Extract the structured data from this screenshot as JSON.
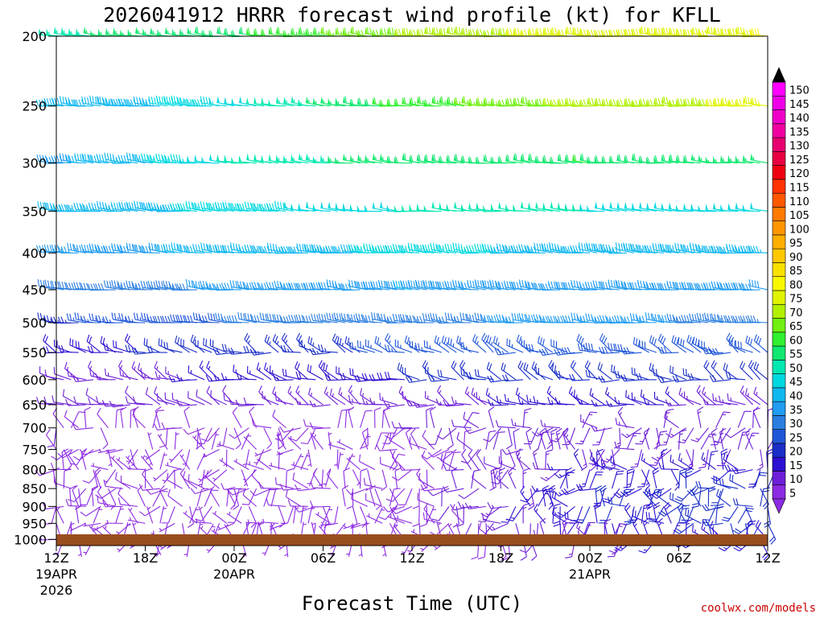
{
  "title": "2026041912 HRRR forecast wind profile (kt) for KFLL",
  "credit": "coolwx.com/models",
  "chart_data": {
    "type": "wind-barb time-height",
    "xlabel": "Forecast Time (UTC)",
    "ylabel": "",
    "y_ticks": [
      200,
      250,
      300,
      350,
      400,
      450,
      500,
      550,
      600,
      650,
      700,
      750,
      800,
      850,
      900,
      950,
      1000
    ],
    "y_scale": "log (pressure, hPa, increasing downward)",
    "ylim": [
      200,
      1020
    ],
    "x_hours": [
      0,
      48
    ],
    "x_ticks": [
      {
        "hour": 0,
        "label": "12Z",
        "date": "19APR",
        "year": "2026"
      },
      {
        "hour": 6,
        "label": "18Z"
      },
      {
        "hour": 12,
        "label": "00Z",
        "date": "20APR"
      },
      {
        "hour": 18,
        "label": "06Z"
      },
      {
        "hour": 24,
        "label": "12Z"
      },
      {
        "hour": 30,
        "label": "18Z"
      },
      {
        "hour": 36,
        "label": "00Z",
        "date": "21APR"
      },
      {
        "hour": 42,
        "label": "06Z"
      },
      {
        "hour": 48,
        "label": "12Z"
      }
    ],
    "ground": {
      "color": "#9a4e1e"
    },
    "colorbar": {
      "levels": [
        5,
        10,
        15,
        20,
        25,
        30,
        35,
        40,
        45,
        50,
        55,
        60,
        65,
        70,
        75,
        80,
        85,
        90,
        95,
        100,
        105,
        110,
        115,
        120,
        125,
        130,
        135,
        140,
        145,
        150
      ],
      "colors": [
        "#8c2be2",
        "#6e1fd8",
        "#2c0fd0",
        "#1a2ec8",
        "#1f56d8",
        "#2a7ee0",
        "#209cf0",
        "#10b8f0",
        "#00d8e0",
        "#00e8b0",
        "#10e870",
        "#30f030",
        "#70f010",
        "#b0f000",
        "#e0f400",
        "#f8f800",
        "#f8e000",
        "#ffc800",
        "#ffae00",
        "#ff9600",
        "#ff7a00",
        "#ff5800",
        "#ff3200",
        "#f00010",
        "#e80040",
        "#e80070",
        "#f000a0",
        "#f000c8",
        "#f000e8",
        "#ff00ff"
      ],
      "over_arrow": "#000000",
      "under_arrow": "#8c2be2"
    },
    "wind_profile": [
      {
        "p": 200,
        "segments": [
          [
            0,
            54
          ],
          [
            12,
            58
          ],
          [
            24,
            70
          ],
          [
            36,
            78
          ],
          [
            48,
            80
          ]
        ]
      },
      {
        "p": 250,
        "segments": [
          [
            0,
            40
          ],
          [
            12,
            48
          ],
          [
            24,
            62
          ],
          [
            36,
            72
          ],
          [
            48,
            76
          ]
        ]
      },
      {
        "p": 300,
        "segments": [
          [
            0,
            38
          ],
          [
            12,
            50
          ],
          [
            24,
            58
          ],
          [
            36,
            60
          ],
          [
            48,
            56
          ]
        ]
      },
      {
        "p": 350,
        "segments": [
          [
            0,
            42
          ],
          [
            12,
            46
          ],
          [
            24,
            50
          ],
          [
            36,
            50
          ],
          [
            48,
            48
          ]
        ]
      },
      {
        "p": 400,
        "segments": [
          [
            0,
            36
          ],
          [
            12,
            42
          ],
          [
            24,
            46
          ],
          [
            36,
            44
          ],
          [
            48,
            44
          ]
        ]
      },
      {
        "p": 450,
        "segments": [
          [
            0,
            30
          ],
          [
            12,
            36
          ],
          [
            24,
            40
          ],
          [
            36,
            38
          ],
          [
            48,
            38
          ]
        ]
      },
      {
        "p": 500,
        "segments": [
          [
            0,
            24
          ],
          [
            12,
            30
          ],
          [
            24,
            34
          ],
          [
            36,
            36
          ],
          [
            48,
            34
          ]
        ]
      },
      {
        "p": 550,
        "segments": [
          [
            0,
            18
          ],
          [
            12,
            22
          ],
          [
            24,
            26
          ],
          [
            36,
            28
          ],
          [
            48,
            28
          ]
        ]
      },
      {
        "p": 600,
        "segments": [
          [
            0,
            12
          ],
          [
            12,
            16
          ],
          [
            24,
            20
          ],
          [
            36,
            22
          ],
          [
            48,
            22
          ]
        ]
      },
      {
        "p": 650,
        "segments": [
          [
            0,
            10
          ],
          [
            12,
            12
          ],
          [
            24,
            14
          ],
          [
            36,
            16
          ],
          [
            48,
            14
          ]
        ]
      },
      {
        "p": 700,
        "segments": [
          [
            0,
            10
          ],
          [
            12,
            8
          ],
          [
            24,
            10
          ],
          [
            36,
            14
          ],
          [
            48,
            12
          ]
        ]
      },
      {
        "p": 750,
        "segments": [
          [
            0,
            8
          ],
          [
            12,
            6
          ],
          [
            24,
            8
          ],
          [
            36,
            14
          ],
          [
            48,
            14
          ]
        ]
      },
      {
        "p": 800,
        "segments": [
          [
            0,
            8
          ],
          [
            12,
            6
          ],
          [
            24,
            8
          ],
          [
            36,
            16
          ],
          [
            48,
            18
          ]
        ]
      },
      {
        "p": 850,
        "segments": [
          [
            0,
            8
          ],
          [
            12,
            8
          ],
          [
            24,
            8
          ],
          [
            36,
            18
          ],
          [
            48,
            22
          ]
        ]
      },
      {
        "p": 900,
        "segments": [
          [
            0,
            8
          ],
          [
            12,
            8
          ],
          [
            24,
            8
          ],
          [
            36,
            20
          ],
          [
            48,
            22
          ]
        ]
      },
      {
        "p": 950,
        "segments": [
          [
            0,
            6
          ],
          [
            12,
            6
          ],
          [
            24,
            6
          ],
          [
            36,
            18
          ],
          [
            48,
            22
          ]
        ]
      },
      {
        "p": 1000,
        "segments": [
          [
            0,
            4
          ],
          [
            12,
            4
          ],
          [
            24,
            4
          ],
          [
            36,
            14
          ],
          [
            48,
            18
          ]
        ]
      }
    ]
  }
}
